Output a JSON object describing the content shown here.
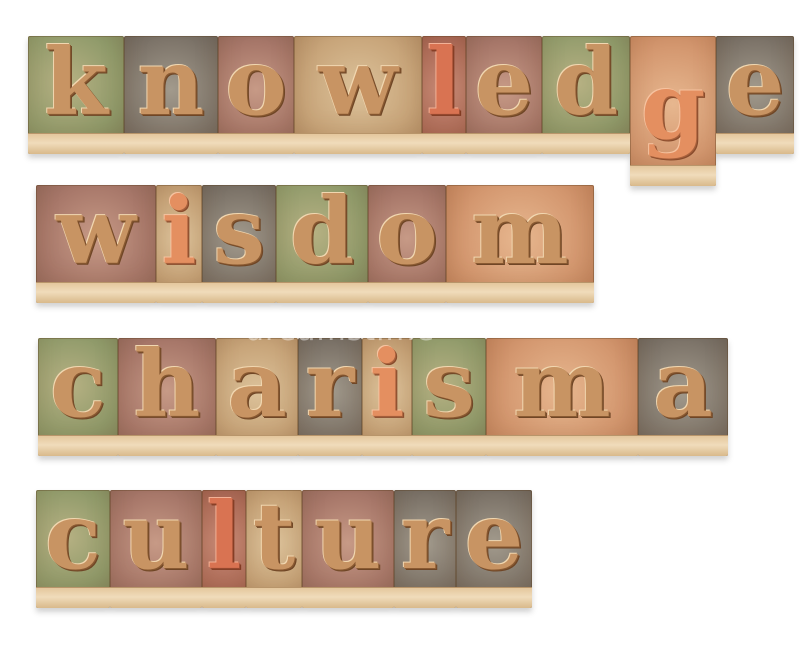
{
  "words": [
    {
      "word": "knowledge",
      "letters": [
        {
          "char": "k",
          "tone": "green"
        },
        {
          "char": "n",
          "tone": "slate"
        },
        {
          "char": "o",
          "tone": "rose"
        },
        {
          "char": "w",
          "tone": "tan"
        },
        {
          "char": "l",
          "tone": "red",
          "ink": "red"
        },
        {
          "char": "e",
          "tone": "rose"
        },
        {
          "char": "d",
          "tone": "green"
        },
        {
          "char": "g",
          "tone": "orange",
          "ink": "orange"
        },
        {
          "char": "e",
          "tone": "slate"
        }
      ]
    },
    {
      "word": "wisdom",
      "letters": [
        {
          "char": "w",
          "tone": "rose"
        },
        {
          "char": "i",
          "tone": "tan",
          "ink": "orange"
        },
        {
          "char": "s",
          "tone": "slate"
        },
        {
          "char": "d",
          "tone": "green"
        },
        {
          "char": "o",
          "tone": "rose"
        },
        {
          "char": "m",
          "tone": "orange"
        }
      ]
    },
    {
      "word": "charisma",
      "letters": [
        {
          "char": "c",
          "tone": "green"
        },
        {
          "char": "h",
          "tone": "rose"
        },
        {
          "char": "a",
          "tone": "tan"
        },
        {
          "char": "r",
          "tone": "slate"
        },
        {
          "char": "i",
          "tone": "tan",
          "ink": "orange"
        },
        {
          "char": "s",
          "tone": "green"
        },
        {
          "char": "m",
          "tone": "orange"
        },
        {
          "char": "a",
          "tone": "slate"
        }
      ]
    },
    {
      "word": "culture",
      "letters": [
        {
          "char": "c",
          "tone": "green"
        },
        {
          "char": "u",
          "tone": "rose"
        },
        {
          "char": "l",
          "tone": "red",
          "ink": "red"
        },
        {
          "char": "t",
          "tone": "tan"
        },
        {
          "char": "u",
          "tone": "rose"
        },
        {
          "char": "r",
          "tone": "slate"
        },
        {
          "char": "e",
          "tone": "slate"
        }
      ]
    }
  ],
  "watermark": "dreamstime"
}
